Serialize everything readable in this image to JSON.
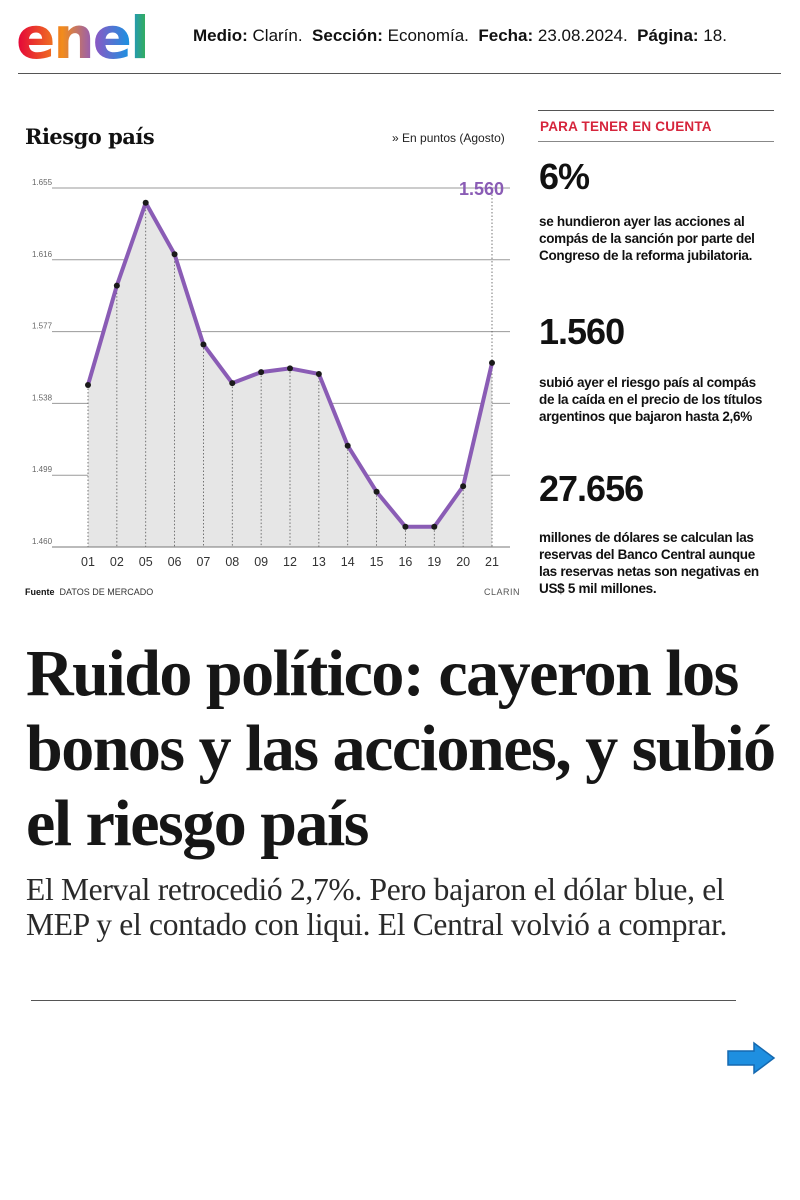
{
  "header": {
    "logo_text": "enel",
    "medio_label": "Medio:",
    "medio": "Clarín.",
    "seccion_label": "Sección:",
    "seccion": "Economía.",
    "fecha_label": "Fecha:",
    "fecha": "23.08.2024.",
    "pagina_label": "Página:",
    "pagina": "18."
  },
  "chart_data": {
    "type": "line",
    "title": "Riesgo país",
    "subtitle": "» En puntos (Agosto)",
    "categories": [
      "01",
      "02",
      "05",
      "06",
      "07",
      "08",
      "09",
      "12",
      "13",
      "14",
      "15",
      "16",
      "19",
      "20",
      "21"
    ],
    "series": [
      {
        "values": [
          1548,
          1602,
          1647,
          1619,
          1570,
          1549,
          1555,
          1557,
          1554,
          1515,
          1490,
          1471,
          1471,
          1493,
          1560
        ]
      }
    ],
    "yticks": [
      "1.655",
      "1.616",
      "1.577",
      "1.538",
      "1.499",
      "1.460"
    ],
    "ylim": [
      1460,
      1655
    ],
    "highlight_label": "1.560",
    "line_color": "#8a5cb5",
    "grid": true,
    "source_label": "Fuente",
    "source": "DATOS DE MERCADO",
    "credit": "CLARIN"
  },
  "sidebar": {
    "header": "PARA TENER EN CUENTA",
    "header_color": "#d6253c",
    "facts": [
      {
        "value": "6%",
        "text": "se hundieron ayer las acciones al compás de la sanción por parte del Congreso de la reforma jubilatoria."
      },
      {
        "value": "1.560",
        "text": "subió ayer el riesgo país al compás de la caída en el precio de los títulos argentinos que bajaron hasta 2,6%"
      },
      {
        "value": "27.656",
        "text": "millones de dólares se calculan las reservas del Banco Central aunque las reservas netas son negativas en US$ 5 mil millones."
      }
    ]
  },
  "article": {
    "headline": "Ruido político: cayeron los bonos y las acciones, y subió el riesgo país",
    "deck": "El Merval retrocedió 2,7%. Pero bajaron el dólar blue, el MEP y el contado con liqui. El Central volvió a comprar."
  },
  "nav": {
    "next_icon": "arrow-right-icon",
    "arrow_color": "#1e8fe0"
  }
}
